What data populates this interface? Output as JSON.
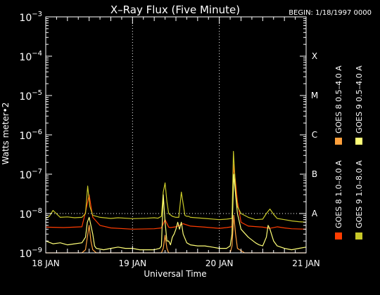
{
  "chart_data": {
    "type": "line",
    "title": "X–Ray Flux (Five Minute)",
    "begin_label": "BEGIN: 1/18/1997 0000",
    "xlabel": "Universal Time",
    "ylabel": "Watts meter•2",
    "y_scale": "log",
    "ylim": [
      1e-09,
      0.001
    ],
    "xlim": [
      0,
      72
    ],
    "x_unit": "hours since 18 JAN 0000 UT",
    "y_ticks": [
      {
        "value": -9,
        "base": "10",
        "exp": "−9"
      },
      {
        "value": -8,
        "base": "10",
        "exp": "−8"
      },
      {
        "value": -7,
        "base": "10",
        "exp": "−7"
      },
      {
        "value": -6,
        "base": "10",
        "exp": "−6"
      },
      {
        "value": -5,
        "base": "10",
        "exp": "−5"
      },
      {
        "value": -4,
        "base": "10",
        "exp": "−4"
      },
      {
        "value": -3,
        "base": "10",
        "exp": "−3"
      }
    ],
    "x_ticks": [
      {
        "value": 0,
        "label": "18 JAN"
      },
      {
        "value": 24,
        "label": "19 JAN"
      },
      {
        "value": 48,
        "label": "20 JAN"
      },
      {
        "value": 72,
        "label": "21 JAN"
      }
    ],
    "grid": {
      "vertical_dotted": [
        24,
        48
      ],
      "horizontal_dotted": [
        -8
      ]
    },
    "flare_classes": [
      {
        "label": "X",
        "value": -4
      },
      {
        "label": "M",
        "value": -5
      },
      {
        "label": "C",
        "value": -6
      },
      {
        "label": "B",
        "value": -7
      },
      {
        "label": "A",
        "value": -8
      }
    ],
    "legend": {
      "placement": "right",
      "columns": [
        [
          {
            "label": "GOES 8  1.0–8.0 A",
            "color": "#ff3c00"
          },
          {
            "label": "GOES 8  0.5–4.0 A",
            "color": "#ffa03c"
          }
        ],
        [
          {
            "label": "GOES 9  1.0–8.0 A",
            "color": "#c8c828"
          },
          {
            "label": "GOES 9  0.5–4.0 A",
            "color": "#ffff78"
          }
        ]
      ]
    },
    "series": [
      {
        "name": "GOES 8  1.0–8.0 A",
        "color": "#ff3c00",
        "x": [
          0,
          5,
          10,
          11,
          12,
          13,
          15,
          18,
          24,
          30,
          32,
          33,
          34,
          34.5,
          36,
          38,
          40,
          44,
          48,
          50,
          51.5,
          52,
          52.5,
          53,
          54,
          56,
          60,
          62,
          64,
          66,
          68,
          72
        ],
        "y": [
          4.5e-09,
          4.4e-09,
          4.6e-09,
          1.1e-08,
          3e-08,
          8e-09,
          5e-09,
          4.3e-09,
          4e-09,
          4.1e-09,
          4.3e-09,
          7e-09,
          4.5e-09,
          4.4e-09,
          4.6e-09,
          5.5e-09,
          4.8e-09,
          4.5e-09,
          4.2e-09,
          4.4e-09,
          4.6e-09,
          1.8e-07,
          6e-08,
          2e-08,
          6e-09,
          4.8e-09,
          4.5e-09,
          4.2e-09,
          4.6e-09,
          4.3e-09,
          4.1e-09,
          4e-09
        ]
      },
      {
        "name": "GOES 8  0.5–4.0 A",
        "color": "#ffa03c",
        "x": [
          0,
          10,
          11,
          11.5,
          12,
          12.5,
          13,
          14,
          18,
          24,
          30,
          32,
          32.5,
          33,
          33.5,
          34,
          40,
          44,
          48,
          51,
          51.5,
          52,
          52.5,
          53,
          55,
          60,
          66,
          72
        ],
        "y": [
          1e-09,
          1e-09,
          1.2e-09,
          2.5e-09,
          5e-09,
          2e-09,
          1.2e-09,
          1e-09,
          1e-09,
          1e-09,
          1e-09,
          1e-09,
          1.3e-09,
          2.8e-09,
          1.3e-09,
          1e-09,
          1e-09,
          1e-09,
          1e-09,
          1e-09,
          1.5e-09,
          9e-09,
          3e-09,
          1.3e-09,
          1e-09,
          1e-09,
          1e-09,
          1e-09
        ]
      },
      {
        "name": "GOES 9  1.0–8.0 A",
        "color": "#c8c828",
        "x": [
          0,
          1,
          2,
          4,
          6,
          8,
          10,
          11,
          11.6,
          12.2,
          13,
          15,
          18,
          20,
          24,
          28,
          30,
          31,
          32,
          32.5,
          33,
          33.5,
          34,
          35,
          36,
          36.8,
          37.5,
          38.5,
          39,
          39.5,
          40,
          44,
          48,
          50,
          51.5,
          51.9,
          52.2,
          52.6,
          53,
          54,
          56,
          58,
          60,
          61,
          62,
          63,
          64,
          66,
          68,
          70,
          72
        ],
        "y": [
          7.5e-09,
          8.5e-09,
          1.2e-08,
          8e-09,
          8.2e-09,
          7.8e-09,
          8e-09,
          1e-08,
          5e-08,
          1.5e-08,
          9e-09,
          8e-09,
          7.5e-09,
          7.8e-09,
          7.4e-09,
          7.6e-09,
          7.8e-09,
          7.6e-09,
          8.5e-09,
          3.5e-08,
          6e-08,
          2e-08,
          1e-08,
          8.5e-09,
          8e-09,
          8e-09,
          3.5e-08,
          9e-09,
          8.5e-09,
          8.5e-09,
          8e-09,
          7.5e-09,
          7e-09,
          7.2e-09,
          7.5e-09,
          3.8e-07,
          1.2e-07,
          3e-08,
          1.5e-08,
          1e-08,
          8e-09,
          7e-09,
          7.2e-09,
          1e-08,
          1.3e-08,
          9.5e-09,
          7.5e-09,
          7e-09,
          6.5e-09,
          6.2e-09,
          6e-09
        ]
      },
      {
        "name": "GOES 9  0.5–4.0 A",
        "color": "#ffff78",
        "x": [
          0,
          2,
          4,
          6,
          8,
          10,
          11,
          11.5,
          12,
          13,
          13.5,
          14,
          16,
          18,
          20,
          22,
          24,
          26,
          28,
          30,
          31.5,
          32,
          32.5,
          33,
          33.5,
          34,
          34.5,
          35,
          35.5,
          36,
          36.5,
          37,
          37.5,
          38,
          39,
          40,
          42,
          44,
          46,
          48,
          50,
          51,
          51.5,
          52,
          52.5,
          53,
          54,
          56,
          58,
          59,
          60,
          61,
          61.5,
          62,
          63,
          64,
          66,
          68,
          70,
          72
        ],
        "y": [
          2e-09,
          1.7e-09,
          1.8e-09,
          1.6e-09,
          1.7e-09,
          1.8e-09,
          2.5e-09,
          6e-09,
          8e-09,
          3e-09,
          1.5e-09,
          1.3e-09,
          1.2e-09,
          1.3e-09,
          1.4e-09,
          1.3e-09,
          1.3e-09,
          1.2e-09,
          1.2e-09,
          1.2e-09,
          1.3e-09,
          1.5e-09,
          3e-08,
          6e-09,
          2e-09,
          2e-09,
          1.6e-09,
          2.5e-09,
          3e-09,
          4e-09,
          6e-09,
          4e-09,
          6e-09,
          3e-09,
          1.8e-09,
          1.6e-09,
          1.5e-09,
          1.5e-09,
          1.4e-09,
          1.3e-09,
          1.3e-09,
          1.5e-09,
          3e-09,
          1e-07,
          3e-08,
          1e-08,
          4e-09,
          2.5e-09,
          1.8e-09,
          1.6e-09,
          1.5e-09,
          2.5e-09,
          5e-09,
          4e-09,
          2e-09,
          1.5e-09,
          1.3e-09,
          1.2e-09,
          1.3e-09,
          1.4e-09
        ]
      }
    ]
  }
}
